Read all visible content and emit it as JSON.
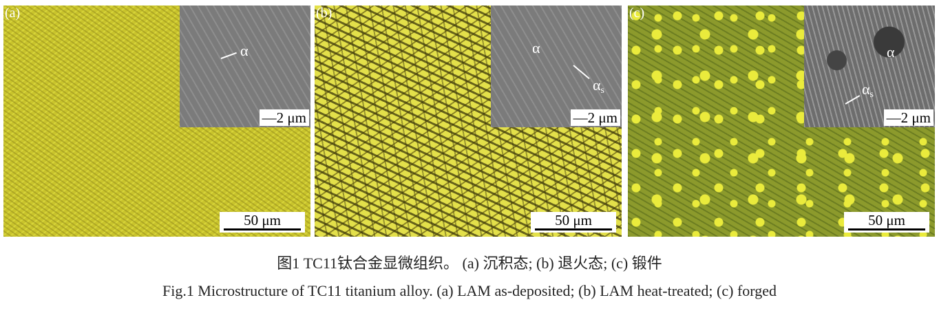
{
  "panels": [
    {
      "label": "(a)",
      "inset_labels": [
        "α"
      ],
      "inset_scale": "2 μm",
      "scale": "50 μm"
    },
    {
      "label": "(b)",
      "inset_labels": [
        "α",
        "α",
        "s"
      ],
      "inset_scale": "2 μm",
      "scale": "50 μm"
    },
    {
      "label": "(c)",
      "inset_labels": [
        "α",
        "α",
        "s"
      ],
      "inset_scale": "2 μm",
      "scale": "50 μm"
    }
  ],
  "caption": {
    "chinese": "图1 TC11钛合金显微组织。 (a) 沉积态; (b) 退火态; (c) 锻件",
    "english": "Fig.1  Microstructure of TC11 titanium alloy. (a) LAM as-deposited; (b) LAM heat-treated; (c) forged"
  }
}
